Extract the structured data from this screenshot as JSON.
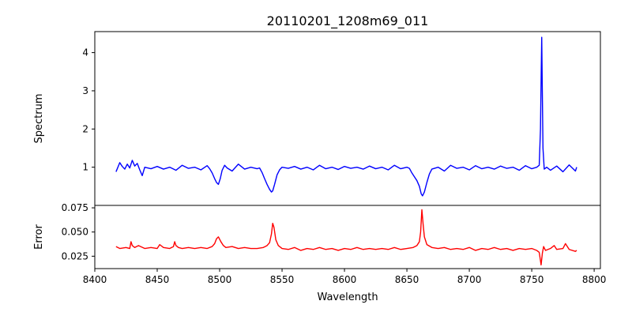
{
  "chart_data": [
    {
      "type": "line",
      "title": "20110201_1208m69_011",
      "xlabel": "",
      "ylabel": "Spectrum",
      "xlim": [
        8400,
        8805
      ],
      "ylim": [
        0.0,
        4.55
      ],
      "yticks": [
        1,
        2,
        3,
        4
      ],
      "grid": false,
      "series": [
        {
          "color": "#0000ff",
          "x": [
            8417,
            8420,
            8422,
            8424,
            8426,
            8428,
            8430,
            8432,
            8434,
            8436,
            8438,
            8440,
            8445,
            8450,
            8455,
            8460,
            8465,
            8470,
            8475,
            8480,
            8485,
            8490,
            8492,
            8494,
            8496,
            8497.5,
            8499,
            8500.5,
            8502,
            8504,
            8506,
            8510,
            8515,
            8520,
            8525,
            8530,
            8532,
            8534,
            8536,
            8538,
            8540,
            8541.5,
            8542.5,
            8544,
            8546,
            8548,
            8550,
            8555,
            8560,
            8565,
            8570,
            8575,
            8580,
            8585,
            8590,
            8595,
            8600,
            8605,
            8610,
            8615,
            8620,
            8625,
            8630,
            8635,
            8640,
            8645,
            8650,
            8652,
            8654,
            8656,
            8658,
            8660,
            8661.5,
            8662.5,
            8664,
            8666,
            8668,
            8670,
            8675,
            8680,
            8685,
            8690,
            8695,
            8700,
            8705,
            8710,
            8715,
            8720,
            8725,
            8730,
            8735,
            8740,
            8745,
            8750,
            8754,
            8756,
            8757,
            8757.6,
            8758,
            8758.4,
            8759,
            8760,
            8762,
            8765,
            8770,
            8775,
            8780,
            8785,
            8786
          ],
          "values": [
            0.88,
            1.12,
            1.02,
            0.95,
            1.08,
            0.98,
            1.18,
            1.03,
            1.1,
            0.93,
            0.78,
            1.0,
            0.96,
            1.02,
            0.95,
            1.0,
            0.92,
            1.05,
            0.97,
            1.0,
            0.93,
            1.04,
            0.96,
            0.85,
            0.7,
            0.6,
            0.55,
            0.7,
            0.92,
            1.05,
            0.98,
            0.9,
            1.08,
            0.95,
            1.0,
            0.96,
            0.98,
            0.86,
            0.7,
            0.55,
            0.42,
            0.35,
            0.38,
            0.55,
            0.8,
            0.93,
            1.0,
            0.97,
            1.02,
            0.95,
            1.0,
            0.93,
            1.05,
            0.96,
            1.0,
            0.94,
            1.02,
            0.97,
            1.0,
            0.95,
            1.03,
            0.96,
            1.0,
            0.93,
            1.05,
            0.96,
            1.0,
            0.97,
            0.85,
            0.75,
            0.65,
            0.5,
            0.3,
            0.25,
            0.35,
            0.6,
            0.82,
            0.95,
            1.0,
            0.9,
            1.05,
            0.97,
            1.0,
            0.93,
            1.04,
            0.96,
            1.0,
            0.95,
            1.03,
            0.97,
            1.0,
            0.92,
            1.04,
            0.96,
            1.0,
            1.05,
            2.0,
            3.5,
            4.4,
            3.2,
            1.5,
            0.95,
            1.0,
            0.92,
            1.03,
            0.88,
            1.06,
            0.9,
            1.0
          ]
        }
      ]
    },
    {
      "type": "line",
      "title": "",
      "xlabel": "Wavelength",
      "ylabel": "Error",
      "xlim": [
        8400,
        8805
      ],
      "ylim": [
        0.0122,
        0.0775
      ],
      "xticks": [
        8400,
        8450,
        8500,
        8550,
        8600,
        8650,
        8700,
        8750,
        8800
      ],
      "yticks": [
        0.025,
        0.05,
        0.075
      ],
      "ytick_labels": [
        "0.025",
        "0.050",
        "0.075"
      ],
      "grid": false,
      "series": [
        {
          "color": "#ff0000",
          "x": [
            8417,
            8420,
            8425,
            8428,
            8429,
            8430,
            8432,
            8435,
            8440,
            8445,
            8450,
            8452,
            8455,
            8460,
            8463,
            8464,
            8465,
            8467,
            8470,
            8475,
            8480,
            8485,
            8490,
            8494,
            8496,
            8497.5,
            8499,
            8501,
            8503,
            8505,
            8510,
            8515,
            8520,
            8525,
            8530,
            8535,
            8538,
            8540,
            8541.5,
            8542.5,
            8543.5,
            8545,
            8547,
            8550,
            8555,
            8560,
            8565,
            8570,
            8575,
            8580,
            8585,
            8590,
            8595,
            8600,
            8605,
            8610,
            8615,
            8620,
            8625,
            8630,
            8635,
            8640,
            8645,
            8650,
            8655,
            8658,
            8660,
            8661,
            8662,
            8663,
            8664,
            8666,
            8670,
            8675,
            8680,
            8685,
            8690,
            8695,
            8700,
            8705,
            8710,
            8715,
            8720,
            8725,
            8730,
            8735,
            8740,
            8745,
            8750,
            8754,
            8756,
            8757.5,
            8758.5,
            8759.5,
            8761,
            8765,
            8768,
            8770,
            8775,
            8777,
            8780,
            8785,
            8786
          ],
          "values": [
            0.035,
            0.033,
            0.034,
            0.033,
            0.04,
            0.036,
            0.034,
            0.036,
            0.033,
            0.034,
            0.033,
            0.037,
            0.034,
            0.033,
            0.035,
            0.04,
            0.036,
            0.034,
            0.033,
            0.034,
            0.033,
            0.034,
            0.033,
            0.035,
            0.038,
            0.043,
            0.045,
            0.04,
            0.036,
            0.034,
            0.035,
            0.033,
            0.034,
            0.033,
            0.033,
            0.034,
            0.036,
            0.039,
            0.048,
            0.059,
            0.055,
            0.042,
            0.036,
            0.033,
            0.032,
            0.034,
            0.031,
            0.033,
            0.032,
            0.034,
            0.032,
            0.033,
            0.031,
            0.033,
            0.032,
            0.034,
            0.032,
            0.033,
            0.032,
            0.033,
            0.032,
            0.034,
            0.032,
            0.033,
            0.034,
            0.036,
            0.04,
            0.05,
            0.073,
            0.058,
            0.045,
            0.037,
            0.034,
            0.033,
            0.034,
            0.032,
            0.033,
            0.032,
            0.034,
            0.031,
            0.033,
            0.032,
            0.034,
            0.032,
            0.033,
            0.031,
            0.033,
            0.032,
            0.033,
            0.031,
            0.029,
            0.016,
            0.028,
            0.035,
            0.031,
            0.033,
            0.036,
            0.032,
            0.033,
            0.038,
            0.032,
            0.03,
            0.031
          ]
        }
      ]
    }
  ]
}
